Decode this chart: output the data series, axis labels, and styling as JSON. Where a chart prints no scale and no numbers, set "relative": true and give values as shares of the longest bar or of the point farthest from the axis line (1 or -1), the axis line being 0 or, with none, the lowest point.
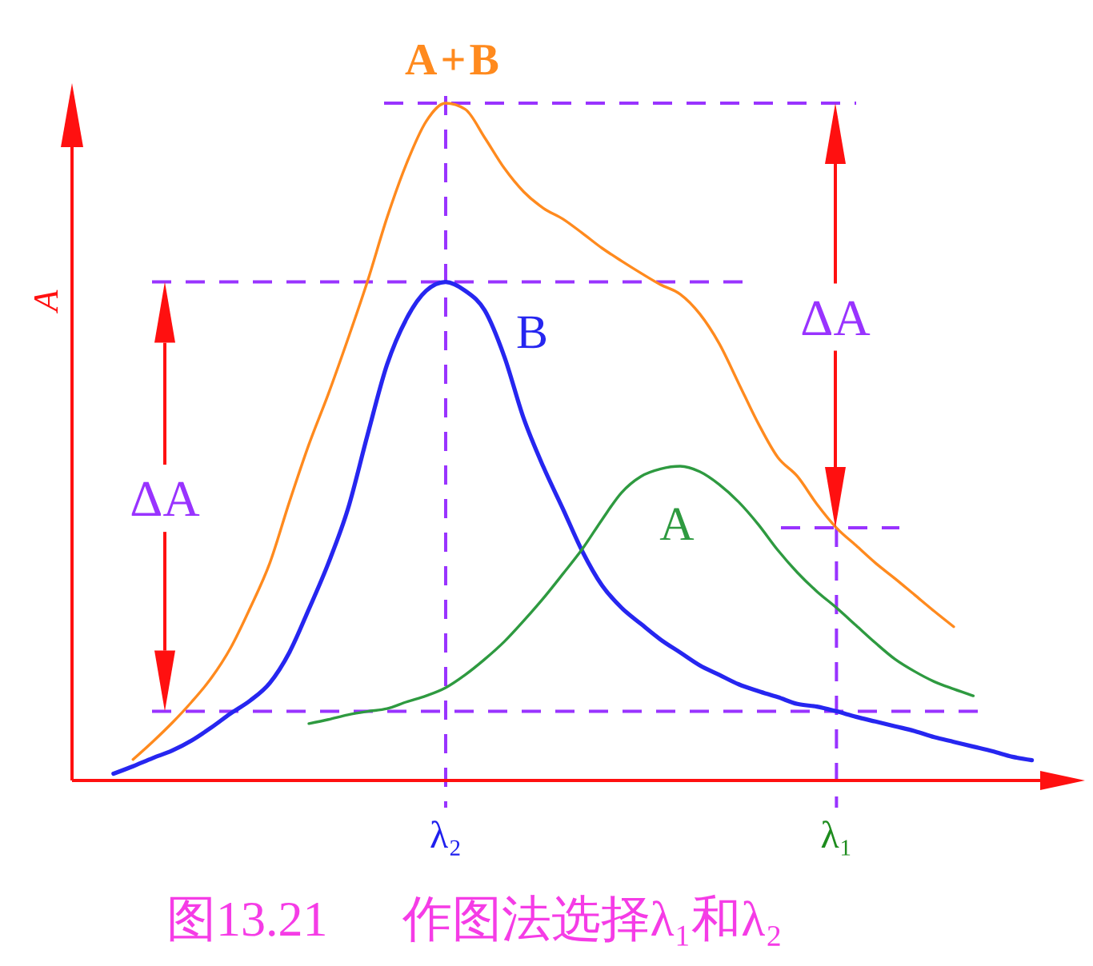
{
  "chart_data": {
    "type": "line",
    "relative": true,
    "ylabel": "A",
    "categories": [
      null,
      null,
      null,
      null,
      null,
      null,
      null,
      null,
      null,
      null,
      null,
      null,
      null,
      null,
      null,
      null,
      null,
      null,
      "λ₂",
      null,
      null,
      null,
      null,
      null,
      null,
      null,
      null,
      null,
      null,
      null,
      null,
      null,
      null,
      null,
      null,
      null,
      null,
      null,
      "λ₁",
      null,
      null,
      null,
      null,
      null,
      null,
      null,
      null,
      null,
      null
    ],
    "series": [
      {
        "name": "A+B",
        "color": "#ff8a1e",
        "values": [
          null,
          null,
          0.031,
          0.057,
          0.085,
          0.116,
          0.151,
          0.196,
          0.255,
          0.321,
          0.411,
          0.496,
          0.571,
          0.652,
          0.737,
          0.831,
          0.911,
          0.973,
          1,
          0.991,
          0.949,
          0.904,
          0.869,
          0.845,
          0.829,
          0.808,
          0.786,
          0.767,
          0.749,
          0.732,
          0.718,
          0.689,
          0.645,
          0.586,
          0.527,
          0.477,
          0.449,
          0.408,
          0.373,
          0.347,
          0.321,
          0.298,
          0.274,
          0.25,
          0.227,
          null,
          null,
          null,
          null
        ]
      },
      {
        "name": "B",
        "color": "#2626f0",
        "values": [
          null,
          0.01,
          0.021,
          0.033,
          0.044,
          0.059,
          0.078,
          0.099,
          0.118,
          0.144,
          0.189,
          0.253,
          0.321,
          0.401,
          0.51,
          0.614,
          0.682,
          0.723,
          0.736,
          0.723,
          0.694,
          0.626,
          0.534,
          0.463,
          0.401,
          0.338,
          0.288,
          0.255,
          0.231,
          0.208,
          0.189,
          0.17,
          0.156,
          0.142,
          0.132,
          0.123,
          0.113,
          0.109,
          0.102,
          0.094,
          0.087,
          0.08,
          0.073,
          0.064,
          0.057,
          0.05,
          0.043,
          0.035,
          0.03
        ]
      },
      {
        "name": "A",
        "color": "#2e9a40",
        "values": [
          null,
          null,
          null,
          null,
          null,
          null,
          null,
          null,
          null,
          null,
          null,
          0.084,
          0.09,
          0.097,
          0.102,
          0.106,
          0.116,
          0.125,
          0.137,
          0.156,
          0.179,
          0.205,
          0.236,
          0.269,
          0.305,
          0.342,
          0.385,
          0.425,
          0.449,
          0.46,
          0.464,
          0.456,
          0.437,
          0.411,
          0.378,
          0.34,
          0.307,
          0.279,
          0.255,
          0.229,
          0.203,
          0.179,
          0.161,
          0.146,
          0.135,
          0.125,
          null,
          null,
          null
        ]
      }
    ],
    "ref_lines": [
      {
        "axis": "y",
        "value": 1,
        "color": "#9933ff",
        "line_style": "dashed"
      },
      {
        "axis": "y",
        "value": 0.736,
        "color": "#9933ff",
        "line_style": "dashed"
      },
      {
        "axis": "y",
        "value": 0.373,
        "color": "#9933ff",
        "line_style": "dashed"
      },
      {
        "axis": "y",
        "value": 0.102,
        "color": "#9933ff",
        "line_style": "dashed"
      },
      {
        "axis": "x",
        "value": "λ₂",
        "color": "#9933ff",
        "line_style": "dashed"
      },
      {
        "axis": "x",
        "value": "λ₁",
        "color": "#9933ff",
        "line_style": "dashed"
      }
    ],
    "annotations": [
      "ΔA",
      "ΔA",
      "图13.21      作图法选择λ₁和λ₂"
    ]
  }
}
